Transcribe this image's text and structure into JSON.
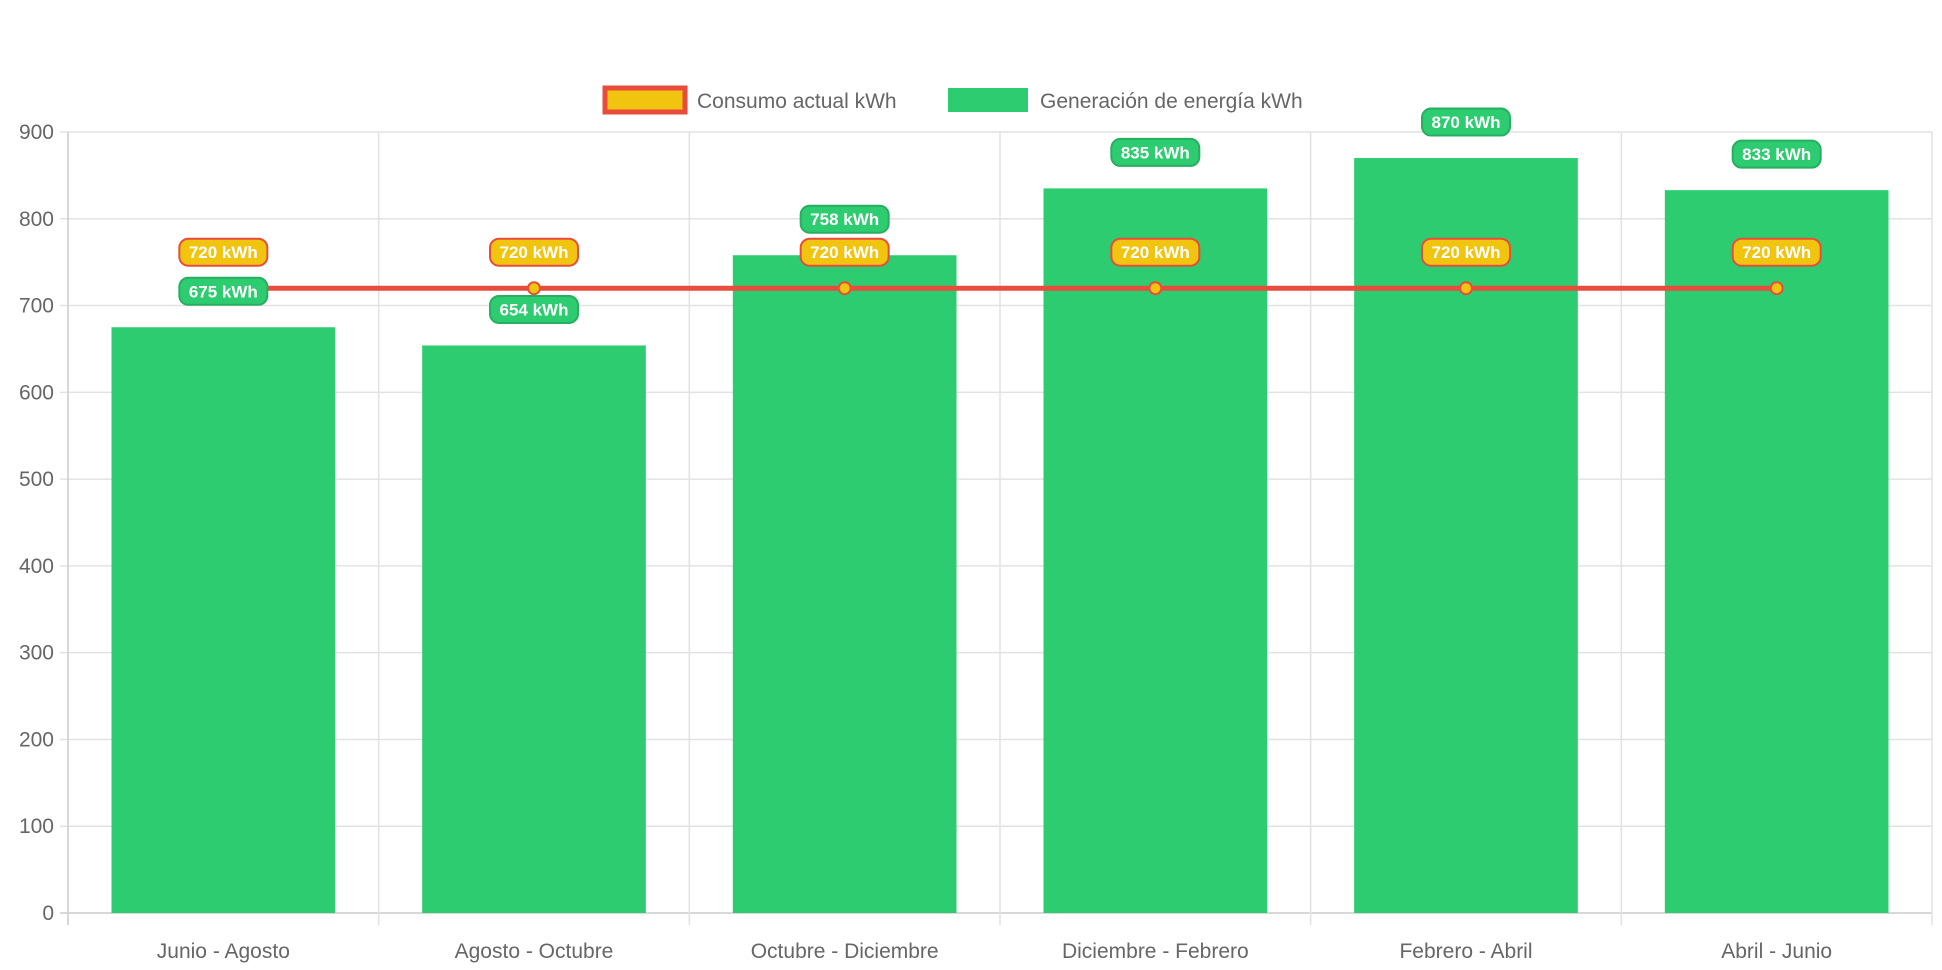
{
  "chart_data": {
    "type": "bar",
    "title": "",
    "xlabel": "",
    "ylabel": "",
    "ylim": [
      0,
      900
    ],
    "yticks": [
      0,
      100,
      200,
      300,
      400,
      500,
      600,
      700,
      800,
      900
    ],
    "grid": true,
    "legend_position": "top-center",
    "categories": [
      "Junio - Agosto",
      "Agosto - Octubre",
      "Octubre - Diciembre",
      "Diciembre - Febrero",
      "Febrero - Abril",
      "Abril - Junio"
    ],
    "unit_suffix": " kWh",
    "series": [
      {
        "name": "Consumo actual kWh",
        "type": "line",
        "values": [
          720,
          720,
          720,
          720,
          720,
          720
        ],
        "color": "#f1c40f",
        "border_color": "#e74c3c"
      },
      {
        "name": "Generación de energía kWh",
        "type": "bar",
        "values": [
          675,
          654,
          758,
          835,
          870,
          833
        ],
        "color": "#2ecc71",
        "border_color": "#27ae60"
      }
    ]
  }
}
